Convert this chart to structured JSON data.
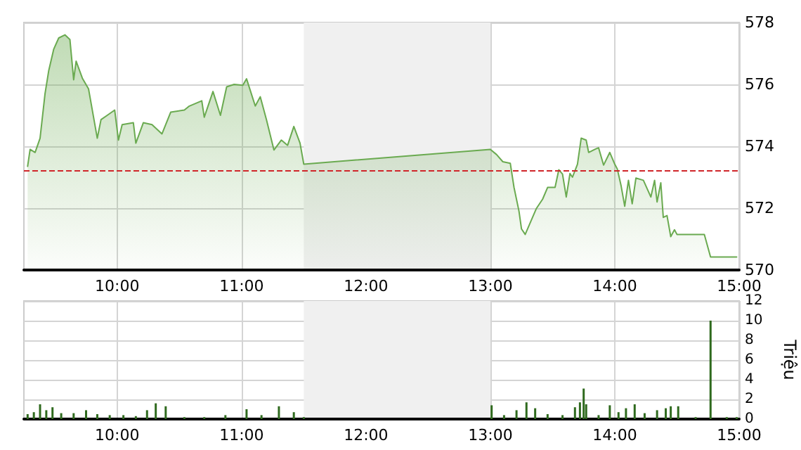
{
  "chart_data": [
    {
      "type": "area",
      "series": [
        {
          "color": "#6aaa50",
          "x": [
            9.28,
            9.3,
            9.34,
            9.38,
            9.42,
            9.45,
            9.49,
            9.53,
            9.58,
            9.62,
            9.65,
            9.67,
            9.72,
            9.77,
            9.84,
            9.87,
            9.92,
            9.98,
            10.01,
            10.04,
            10.13,
            10.15,
            10.21,
            10.28,
            10.36,
            10.43,
            10.54,
            10.58,
            10.68,
            10.7,
            10.77,
            10.83,
            10.88,
            10.94,
            11.01,
            11.04,
            11.11,
            11.15,
            11.2,
            11.26,
            11.32,
            11.37,
            11.42,
            11.47,
            11.5,
            13.0,
            13.05,
            13.1,
            13.16,
            13.19,
            13.23,
            13.25,
            13.28,
            13.37,
            13.42,
            13.46,
            13.52,
            13.55,
            13.58,
            13.61,
            13.64,
            13.66,
            13.7,
            13.73,
            13.77,
            13.79,
            13.84,
            13.87,
            13.91,
            13.96,
            14.0,
            14.02,
            14.05,
            14.08,
            14.11,
            14.14,
            14.17,
            14.23,
            14.29,
            14.32,
            14.34,
            14.37,
            14.39,
            14.42,
            14.45,
            14.48,
            14.5,
            14.72,
            14.77,
            14.98
          ],
          "values": [
            573.35,
            573.9,
            573.8,
            574.26,
            575.7,
            576.45,
            577.14,
            577.5,
            577.6,
            577.45,
            576.15,
            576.75,
            576.2,
            575.85,
            574.26,
            574.86,
            575.0,
            575.17,
            574.2,
            574.7,
            574.76,
            574.1,
            574.76,
            574.7,
            574.4,
            575.1,
            575.17,
            575.3,
            575.47,
            574.94,
            575.77,
            575.0,
            575.92,
            576.0,
            575.97,
            576.18,
            575.3,
            575.6,
            574.86,
            573.88,
            574.2,
            574.03,
            574.64,
            574.1,
            573.42,
            573.9,
            573.73,
            573.5,
            573.45,
            572.67,
            571.9,
            571.33,
            571.15,
            571.99,
            572.29,
            572.67,
            572.67,
            573.24,
            573.1,
            572.36,
            573.12,
            573.0,
            573.42,
            574.26,
            574.2,
            573.8,
            573.9,
            573.95,
            573.39,
            573.8,
            573.42,
            573.27,
            572.74,
            572.06,
            572.9,
            572.14,
            572.97,
            572.9,
            572.36,
            572.9,
            572.2,
            572.82,
            571.7,
            571.76,
            571.08,
            571.3,
            571.15,
            571.15,
            570.42,
            570.42
          ]
        }
      ],
      "xlim": [
        9.25,
        15
      ],
      "xticks": [
        {
          "value": 10,
          "label": "10:00"
        },
        {
          "value": 11,
          "label": "11:00"
        },
        {
          "value": 12,
          "label": "12:00"
        },
        {
          "value": 13,
          "label": "13:00"
        },
        {
          "value": 14,
          "label": "14:00"
        },
        {
          "value": 15,
          "label": "15:00"
        }
      ],
      "ylim": [
        570,
        578
      ],
      "yticks": [
        570,
        572,
        574,
        576,
        578
      ],
      "ref_lines": [
        {
          "axis": "y",
          "value": 573.2,
          "color": "#d0262a",
          "line_style": "dashed"
        }
      ],
      "bands": [
        {
          "axis": "x",
          "from": 11.5,
          "to": 13,
          "color": "#f0f0f0"
        }
      ],
      "grid": true
    },
    {
      "type": "bar",
      "ylabel": "Triệu",
      "series": [
        {
          "color": "#2f6a1e",
          "x": [
            9.28,
            9.33,
            9.38,
            9.43,
            9.48,
            9.55,
            9.65,
            9.75,
            9.84,
            9.94,
            10.05,
            10.15,
            10.24,
            10.31,
            10.39,
            10.54,
            10.7,
            10.87,
            11.04,
            11.16,
            11.3,
            11.42,
            11.5,
            13.01,
            13.11,
            13.21,
            13.29,
            13.36,
            13.46,
            13.58,
            13.68,
            13.72,
            13.75,
            13.77,
            13.87,
            13.96,
            14.03,
            14.09,
            14.16,
            14.24,
            14.34,
            14.41,
            14.45,
            14.51,
            14.65,
            14.77,
            14.9,
            14.98
          ],
          "values": [
            0.5,
            0.7,
            1.5,
            0.9,
            1.2,
            0.6,
            0.6,
            0.9,
            0.5,
            0.4,
            0.4,
            0.3,
            0.9,
            1.6,
            1.3,
            0.2,
            0.2,
            0.4,
            1.0,
            0.4,
            1.3,
            0.7,
            0.2,
            1.4,
            0.4,
            0.9,
            1.7,
            1.1,
            0.5,
            0.4,
            1.2,
            1.7,
            3.1,
            1.5,
            0.4,
            1.4,
            0.7,
            1.1,
            1.5,
            0.6,
            0.9,
            1.1,
            1.3,
            1.3,
            0.2,
            10.0,
            0.2,
            0.2
          ]
        }
      ],
      "xlim": [
        9.25,
        15
      ],
      "xticks": [
        {
          "value": 10,
          "label": "10:00"
        },
        {
          "value": 11,
          "label": "11:00"
        },
        {
          "value": 12,
          "label": "12:00"
        },
        {
          "value": 13,
          "label": "13:00"
        },
        {
          "value": 14,
          "label": "14:00"
        },
        {
          "value": 15,
          "label": "15:00"
        }
      ],
      "ylim": [
        0,
        12
      ],
      "yticks": [
        0,
        2,
        4,
        6,
        8,
        10,
        12
      ],
      "bands": [
        {
          "axis": "x",
          "from": 11.5,
          "to": 13,
          "color": "#f0f0f0"
        }
      ],
      "grid": true
    }
  ]
}
